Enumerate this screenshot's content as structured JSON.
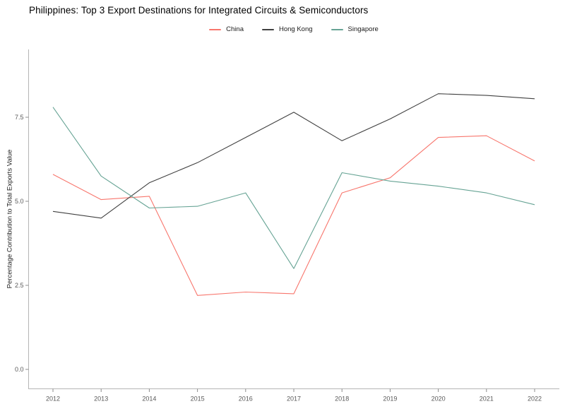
{
  "page": {
    "background": "#ffffff"
  },
  "chart_data": {
    "type": "line",
    "title": "Philippines: Top 3 Export Destinations for Integrated Circuits & Semiconductors",
    "xlabel": "",
    "ylabel": "Percentage Contribution to Total Exports Value",
    "x": [
      2012,
      2013,
      2014,
      2015,
      2016,
      2017,
      2018,
      2019,
      2020,
      2021,
      2022
    ],
    "x_tick_labels": [
      "2012",
      "2013",
      "2014",
      "2015",
      "2016",
      "2017",
      "2018",
      "2019",
      "2020",
      "2021",
      "2022"
    ],
    "y_ticks": [
      {
        "label": "0.0",
        "value": 0.0
      },
      {
        "label": "2.5",
        "value": 2.5
      },
      {
        "label": "5.0",
        "value": 5.0
      },
      {
        "label": "7.5",
        "value": 7.5
      }
    ],
    "ylim": [
      0,
      9.5
    ],
    "grid": false,
    "legend_position": "top-center",
    "axis_color": "#b5b5b5",
    "tick_color": "#8c8c8c",
    "tick_label_color": "#595959",
    "series": [
      {
        "name": "China",
        "color": "#f8766d",
        "values": [
          5.8,
          5.05,
          5.15,
          2.2,
          2.3,
          2.25,
          5.25,
          5.7,
          6.9,
          6.95,
          6.2
        ]
      },
      {
        "name": "Hong Kong",
        "color": "#404040",
        "values": [
          4.7,
          4.5,
          5.55,
          6.15,
          6.9,
          7.65,
          6.8,
          7.45,
          8.2,
          8.15,
          8.05
        ]
      },
      {
        "name": "Singapore",
        "color": "#66a394",
        "values": [
          7.8,
          5.75,
          4.8,
          4.85,
          5.25,
          3.0,
          5.85,
          5.6,
          5.45,
          5.25,
          4.9
        ]
      }
    ]
  }
}
